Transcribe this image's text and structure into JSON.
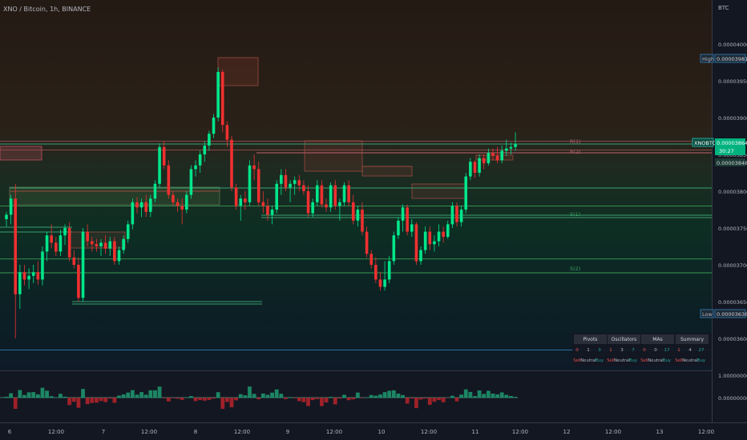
{
  "header": {
    "symbol_title": "XNO / Bitcoin, 1h, BINANCE"
  },
  "price_axis": {
    "currency_label": "BTC",
    "ticks": [
      "0.00004000",
      "0.00003950",
      "0.00003900",
      "0.00003850",
      "0.00003800",
      "0.00003750",
      "0.00003700",
      "0.00003650",
      "0.00003600"
    ],
    "high_label": "High",
    "high_value": "0.00003981",
    "low_label": "Low",
    "low_value": "0.00003636",
    "symbol_tag": "XNOBTC",
    "last_price": "0.00003864",
    "countdown": "30:27",
    "secondary_price": "0.00003848"
  },
  "oscillator_axis": {
    "top_value": "1.00000000",
    "zero_value": "0.00000000"
  },
  "time_axis": {
    "labels": [
      "6",
      "12:00",
      "7",
      "12:00",
      "8",
      "12:00",
      "9",
      "12:00",
      "10",
      "12:00",
      "11",
      "12:00",
      "12",
      "12:00",
      "13",
      "12:00"
    ]
  },
  "pivot_labels": {
    "r1": "R(1)",
    "r2": "R(2)",
    "s1": "S(1)",
    "s2": "S(2)"
  },
  "tech_panel": {
    "headers": [
      "Pivots",
      "Oscillators",
      "MAs",
      "Summary"
    ],
    "groups": [
      {
        "counts": [
          "0",
          "1",
          "3"
        ],
        "labels": [
          "Sell",
          "Neutral",
          "Buy"
        ]
      },
      {
        "counts": [
          "1",
          "3",
          "7"
        ],
        "labels": [
          "Sell",
          "Neutral",
          "Buy"
        ]
      },
      {
        "counts": [
          "0",
          "0",
          "17"
        ],
        "labels": [
          "Sell",
          "Neutral",
          "Buy"
        ]
      },
      {
        "counts": [
          "1",
          "4",
          "27"
        ],
        "labels": [
          "Sell",
          "Neutral",
          "Buy"
        ]
      }
    ]
  },
  "colors": {
    "background": "#131722",
    "bull": "#26a69a",
    "bull_bright": "#00e68a",
    "bear": "#ef3030",
    "grid": "#2a2e39",
    "text": "#b2b5be",
    "pivot_red": "#9a4a50",
    "pivot_green": "#3a9a55"
  },
  "chart_data": {
    "type": "candlestick",
    "symbol": "XNO / Bitcoin",
    "interval": "1h",
    "exchange": "BINANCE",
    "x_axis": {
      "days": [
        "6",
        "7",
        "8",
        "9",
        "10",
        "11",
        "12",
        "13"
      ]
    },
    "ylim": [
      3.5e-05,
      4.03e-05
    ],
    "pivots": {
      "R1": 3.868e-05,
      "R2": 3.856e-05,
      "S1": 3.78e-05,
      "S2": 3.708e-05
    },
    "high": 3.981e-05,
    "low": 3.636e-05,
    "last": 3.864e-05,
    "candles": [
      [
        3.762e-05,
        3.772e-05,
        3.752e-05,
        3.768e-05
      ],
      [
        3.768e-05,
        3.795e-05,
        3.755e-05,
        3.79e-05
      ],
      [
        3.79e-05,
        3.81e-05,
        3.6e-05,
        3.66e-05
      ],
      [
        3.66e-05,
        3.7e-05,
        3.64e-05,
        3.69e-05
      ],
      [
        3.69e-05,
        3.7e-05,
        3.672e-05,
        3.68e-05
      ],
      [
        3.68e-05,
        3.695e-05,
        3.667e-05,
        3.685e-05
      ],
      [
        3.685e-05,
        3.7e-05,
        3.675e-05,
        3.69e-05
      ],
      [
        3.69e-05,
        3.705e-05,
        3.673e-05,
        3.68e-05
      ],
      [
        3.68e-05,
        3.725e-05,
        3.672e-05,
        3.718e-05
      ],
      [
        3.718e-05,
        3.745e-05,
        3.705e-05,
        3.74e-05
      ],
      [
        3.74e-05,
        3.755e-05,
        3.722e-05,
        3.73e-05
      ],
      [
        3.73e-05,
        3.738e-05,
        3.712e-05,
        3.718e-05
      ],
      [
        3.718e-05,
        3.748e-05,
        3.712e-05,
        3.74e-05
      ],
      [
        3.74e-05,
        3.755e-05,
        3.727e-05,
        3.75e-05
      ],
      [
        3.75e-05,
        3.758e-05,
        3.705e-05,
        3.71e-05
      ],
      [
        3.71e-05,
        3.72e-05,
        3.695e-05,
        3.7e-05
      ],
      [
        3.7e-05,
        3.71e-05,
        3.65e-05,
        3.655e-05
      ],
      [
        3.655e-05,
        3.75e-05,
        3.65e-05,
        3.745e-05
      ],
      [
        3.745e-05,
        3.755e-05,
        3.725e-05,
        3.732e-05
      ],
      [
        3.732e-05,
        3.738e-05,
        3.718e-05,
        3.728e-05
      ],
      [
        3.728e-05,
        3.735e-05,
        3.718e-05,
        3.725e-05
      ],
      [
        3.725e-05,
        3.735e-05,
        3.712e-05,
        3.73e-05
      ],
      [
        3.73e-05,
        3.74e-05,
        3.715e-05,
        3.722e-05
      ],
      [
        3.722e-05,
        3.738e-05,
        3.712e-05,
        3.732e-05
      ],
      [
        3.732e-05,
        3.738e-05,
        3.7e-05,
        3.705e-05
      ],
      [
        3.705e-05,
        3.725e-05,
        3.7e-05,
        3.72e-05
      ],
      [
        3.72e-05,
        3.74e-05,
        3.715e-05,
        3.735e-05
      ],
      [
        3.735e-05,
        3.76e-05,
        3.73e-05,
        3.755e-05
      ],
      [
        3.755e-05,
        3.79e-05,
        3.748e-05,
        3.785e-05
      ],
      [
        3.785e-05,
        3.792e-05,
        3.77e-05,
        3.778e-05
      ],
      [
        3.778e-05,
        3.79e-05,
        3.765e-05,
        3.785e-05
      ],
      [
        3.785e-05,
        3.795e-05,
        3.765e-05,
        3.772e-05
      ],
      [
        3.772e-05,
        3.795e-05,
        3.765e-05,
        3.79e-05
      ],
      [
        3.79e-05,
        3.815e-05,
        3.785e-05,
        3.81e-05
      ],
      [
        3.81e-05,
        3.865e-05,
        3.805e-05,
        3.86e-05
      ],
      [
        3.86e-05,
        3.868e-05,
        3.83e-05,
        3.835e-05
      ],
      [
        3.835e-05,
        3.842e-05,
        3.79e-05,
        3.795e-05
      ],
      [
        3.795e-05,
        3.8e-05,
        3.78e-05,
        3.785e-05
      ],
      [
        3.785e-05,
        3.79e-05,
        3.772e-05,
        3.78e-05
      ],
      [
        3.78e-05,
        3.79e-05,
        3.755e-05,
        3.775e-05
      ],
      [
        3.775e-05,
        3.8e-05,
        3.77e-05,
        3.795e-05
      ],
      [
        3.795e-05,
        3.835e-05,
        3.79e-05,
        3.83e-05
      ],
      [
        3.83e-05,
        3.842e-05,
        3.82e-05,
        3.835e-05
      ],
      [
        3.835e-05,
        3.855e-05,
        3.825e-05,
        3.85e-05
      ],
      [
        3.85e-05,
        3.868e-05,
        3.84e-05,
        3.862e-05
      ],
      [
        3.862e-05,
        3.882e-05,
        3.855e-05,
        3.878e-05
      ],
      [
        3.878e-05,
        3.905e-05,
        3.872e-05,
        3.9e-05
      ],
      [
        3.9e-05,
        3.968e-05,
        3.895e-05,
        3.962e-05
      ],
      [
        3.962e-05,
        3.965e-05,
        3.88e-05,
        3.89e-05
      ],
      [
        3.89e-05,
        3.895e-05,
        3.86e-05,
        3.87e-05
      ],
      [
        3.87e-05,
        3.875e-05,
        3.8e-05,
        3.805e-05
      ],
      [
        3.805e-05,
        3.81e-05,
        3.775e-05,
        3.78e-05
      ],
      [
        3.78e-05,
        3.795e-05,
        3.76e-05,
        3.79e-05
      ],
      [
        3.79e-05,
        3.8e-05,
        3.775e-05,
        3.785e-05
      ],
      [
        3.785e-05,
        3.842e-05,
        3.78e-05,
        3.835e-05
      ],
      [
        3.835e-05,
        3.85e-05,
        3.815e-05,
        3.83e-05
      ],
      [
        3.83e-05,
        3.84e-05,
        3.78e-05,
        3.785e-05
      ],
      [
        3.785e-05,
        3.8e-05,
        3.77e-05,
        3.78e-05
      ],
      [
        3.78e-05,
        3.79e-05,
        3.76e-05,
        3.768e-05
      ],
      [
        3.768e-05,
        3.78e-05,
        3.755e-05,
        3.775e-05
      ],
      [
        3.775e-05,
        3.815e-05,
        3.77e-05,
        3.81e-05
      ],
      [
        3.81e-05,
        3.83e-05,
        3.795e-05,
        3.822e-05
      ],
      [
        3.822e-05,
        3.83e-05,
        3.8e-05,
        3.805e-05
      ],
      [
        3.805e-05,
        3.815e-05,
        3.785e-05,
        3.81e-05
      ],
      [
        3.81e-05,
        3.82e-05,
        3.795e-05,
        3.815e-05
      ],
      [
        3.815e-05,
        3.822e-05,
        3.8e-05,
        3.808e-05
      ],
      [
        3.808e-05,
        3.815e-05,
        3.795e-05,
        3.8e-05
      ],
      [
        3.8e-05,
        3.808e-05,
        3.765e-05,
        3.77e-05
      ],
      [
        3.77e-05,
        3.79e-05,
        3.765e-05,
        3.785e-05
      ],
      [
        3.785e-05,
        3.815e-05,
        3.78e-05,
        3.808e-05
      ],
      [
        3.808e-05,
        3.815e-05,
        3.778e-05,
        3.782e-05
      ],
      [
        3.782e-05,
        3.79e-05,
        3.772e-05,
        3.778e-05
      ],
      [
        3.778e-05,
        3.812e-05,
        3.772e-05,
        3.808e-05
      ],
      [
        3.808e-05,
        3.815e-05,
        3.775e-05,
        3.78e-05
      ],
      [
        3.78e-05,
        3.79e-05,
        3.76e-05,
        3.785e-05
      ],
      [
        3.785e-05,
        3.812e-05,
        3.78e-05,
        3.808e-05
      ],
      [
        3.808e-05,
        3.815e-05,
        3.78e-05,
        3.785e-05
      ],
      [
        3.785e-05,
        3.795e-05,
        3.755e-05,
        3.76e-05
      ],
      [
        3.76e-05,
        3.78e-05,
        3.752e-05,
        3.775e-05
      ],
      [
        3.775e-05,
        3.785e-05,
        3.74e-05,
        3.745e-05
      ],
      [
        3.745e-05,
        3.752e-05,
        3.71e-05,
        3.715e-05
      ],
      [
        3.715e-05,
        3.72e-05,
        3.695e-05,
        3.7e-05
      ],
      [
        3.7e-05,
        3.71e-05,
        3.675e-05,
        3.68e-05
      ],
      [
        3.68e-05,
        3.69e-05,
        3.665e-05,
        3.67e-05
      ],
      [
        3.67e-05,
        3.705e-05,
        3.665e-05,
        3.68e-05
      ],
      [
        3.68e-05,
        3.712e-05,
        3.675e-05,
        3.705e-05
      ],
      [
        3.705e-05,
        3.745e-05,
        3.7e-05,
        3.74e-05
      ],
      [
        3.74e-05,
        3.765e-05,
        3.735e-05,
        3.76e-05
      ],
      [
        3.76e-05,
        3.782e-05,
        3.745e-05,
        3.778e-05
      ],
      [
        3.778e-05,
        3.782e-05,
        3.74e-05,
        3.745e-05
      ],
      [
        3.745e-05,
        3.762e-05,
        3.738e-05,
        3.755e-05
      ],
      [
        3.755e-05,
        3.758e-05,
        3.7e-05,
        3.705e-05
      ],
      [
        3.705e-05,
        3.725e-05,
        3.7e-05,
        3.72e-05
      ],
      [
        3.72e-05,
        3.752e-05,
        3.715e-05,
        3.745e-05
      ],
      [
        3.745e-05,
        3.752e-05,
        3.72e-05,
        3.728e-05
      ],
      [
        3.728e-05,
        3.74e-05,
        3.718e-05,
        3.732e-05
      ],
      [
        3.732e-05,
        3.755e-05,
        3.725e-05,
        3.745e-05
      ],
      [
        3.745e-05,
        3.752e-05,
        3.73e-05,
        3.738e-05
      ],
      [
        3.738e-05,
        3.76e-05,
        3.735e-05,
        3.755e-05
      ],
      [
        3.755e-05,
        3.785e-05,
        3.75e-05,
        3.78e-05
      ],
      [
        3.78e-05,
        3.785e-05,
        3.752e-05,
        3.758e-05
      ],
      [
        3.758e-05,
        3.78e-05,
        3.752e-05,
        3.775e-05
      ],
      [
        3.775e-05,
        3.825e-05,
        3.77e-05,
        3.82e-05
      ],
      [
        3.82e-05,
        3.845e-05,
        3.815e-05,
        3.84e-05
      ],
      [
        3.84e-05,
        3.842e-05,
        3.818e-05,
        3.825e-05
      ],
      [
        3.825e-05,
        3.85e-05,
        3.82e-05,
        3.845e-05
      ],
      [
        3.845e-05,
        3.85e-05,
        3.83e-05,
        3.838e-05
      ],
      [
        3.838e-05,
        3.858e-05,
        3.835e-05,
        3.852e-05
      ],
      [
        3.852e-05,
        3.858e-05,
        3.842e-05,
        3.848e-05
      ],
      [
        3.848e-05,
        3.86e-05,
        3.838e-05,
        3.842e-05
      ],
      [
        3.842e-05,
        3.862e-05,
        3.838e-05,
        3.855e-05
      ],
      [
        3.855e-05,
        3.87e-05,
        3.848e-05,
        3.858e-05
      ],
      [
        3.858e-05,
        3.866e-05,
        3.85e-05,
        3.86e-05
      ],
      [
        3.86e-05,
        3.88e-05,
        3.855e-05,
        3.864e-05
      ]
    ]
  }
}
